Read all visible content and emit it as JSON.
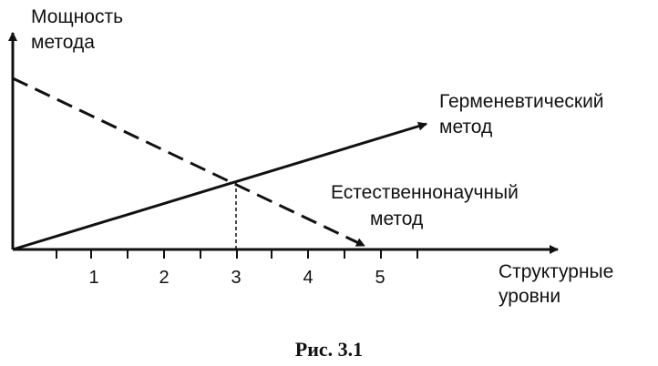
{
  "y_axis_label": [
    "Мощность",
    "метода"
  ],
  "x_axis_label": [
    "Структурные",
    "уровни"
  ],
  "tick_labels": [
    "1",
    "2",
    "3",
    "4",
    "5"
  ],
  "hermeneutic_label": [
    "Герменевтический",
    "метод"
  ],
  "natural_science_label": [
    "Естественнонаучный",
    "метод"
  ],
  "caption": "Рис. 3.1",
  "colors": {
    "ink": "#111111",
    "background": "#ffffff"
  }
}
